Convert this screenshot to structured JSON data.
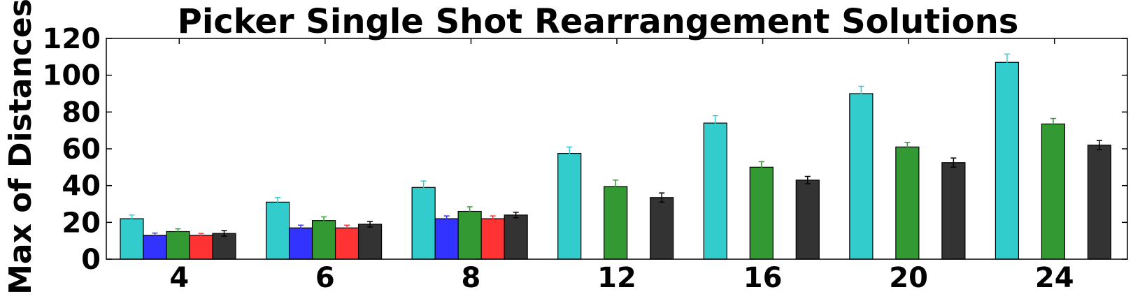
{
  "chart_data": {
    "type": "bar",
    "title": "Picker Single Shot Rearrangement Solutions",
    "xlabel": "",
    "ylabel": "Max of Distances",
    "ylim": [
      0,
      120
    ],
    "yticks": [
      "0",
      "20",
      "40",
      "60",
      "80",
      "100",
      "120"
    ],
    "categories": [
      "4",
      "6",
      "8",
      "12",
      "16",
      "20",
      "24"
    ],
    "grid": false,
    "series": [
      {
        "color": "#33cccc",
        "values": [
          22,
          31,
          39,
          57.5,
          74,
          90,
          107
        ],
        "errors": [
          2,
          2.5,
          3.5,
          3.5,
          4,
          4,
          4.5
        ]
      },
      {
        "color": "#3333ff",
        "values": [
          13,
          17,
          22,
          null,
          null,
          null,
          null
        ],
        "errors": [
          1.2,
          1.5,
          1.5,
          null,
          null,
          null,
          null
        ]
      },
      {
        "color": "#339933",
        "values": [
          15,
          21,
          26,
          39.5,
          50,
          61,
          73.5
        ],
        "errors": [
          1.5,
          2,
          2.5,
          3.5,
          3,
          2.5,
          3
        ]
      },
      {
        "color": "#ff3333",
        "values": [
          13,
          17,
          22,
          null,
          null,
          null,
          null
        ],
        "errors": [
          1,
          1.5,
          1.5,
          null,
          null,
          null,
          null
        ]
      },
      {
        "color": "#333333",
        "values": [
          14,
          19,
          24,
          33.5,
          43,
          52.5,
          62
        ],
        "errors": [
          1.5,
          1.5,
          1.5,
          2.5,
          2,
          2.5,
          2.5
        ]
      }
    ]
  }
}
